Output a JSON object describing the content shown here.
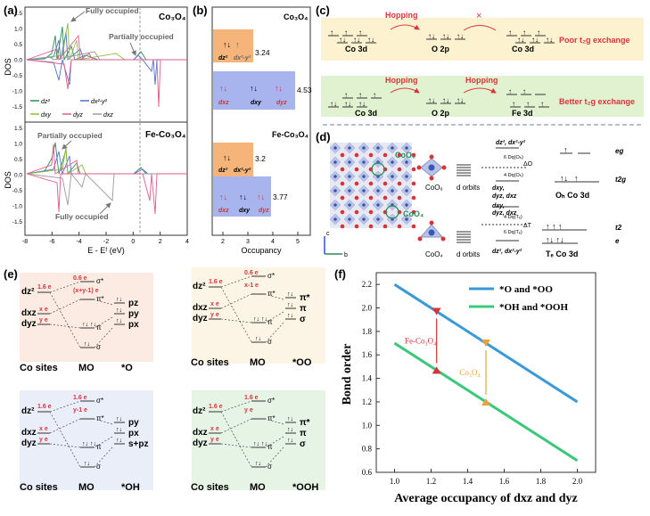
{
  "panel_letters": {
    "a": "(a)",
    "b": "(b)",
    "c": "(c)",
    "d": "(d)",
    "e": "(e)",
    "f": "(f)"
  },
  "panel_a": {
    "top_title": "Co₃O₄",
    "bottom_title": "Fe-Co₃O₄",
    "ylabel": "DOS",
    "xlabel": "E - Eᶠ (eV)",
    "xticks": [
      "-8",
      "-6",
      "-4",
      "-2",
      "0",
      "2",
      "4"
    ],
    "yticks": [
      "1.5",
      "1.0",
      "0.5",
      "0.0",
      "-0.5",
      "-1.0",
      "-1.5"
    ],
    "ann_fully_top": "Fully occupied",
    "ann_partially_top": "Partially occupied",
    "ann_partially_bottom": "Partially occupied",
    "ann_fully_bottom": "Fully occupied",
    "legend": [
      "dz²",
      "dx²-y²",
      "dxy",
      "dyz",
      "dxz"
    ],
    "colors": {
      "dz2": "#2e8b57",
      "dx2y2": "#4f6fd1",
      "dxy": "#8fbf3f",
      "dyz": "#e05a8a",
      "dxz": "#9a9a9a"
    }
  },
  "panel_b": {
    "top_title": "Co₃O₄",
    "bottom_title": "Fe-Co₃O₄",
    "xlabel": "Occupancy",
    "xticks": [
      "2",
      "3",
      "4",
      "5"
    ],
    "val1": "3.24",
    "val2": "4.53",
    "val3": "3.2",
    "val4": "3.77",
    "orb_labels": {
      "dz2": "dz²",
      "dx2y2": "dx²-y²",
      "dxz": "dxz",
      "dxy": "dxy",
      "dyz": "dyz"
    }
  },
  "panel_c": {
    "hopping": "Hopping",
    "co3d": "Co 3d",
    "o2p": "O 2p",
    "fe3d": "Fe 3d",
    "poor": "Poor t₂g exchange",
    "better": "Better t₂g exchange",
    "cross": "×"
  },
  "panel_d": {
    "coo6": "CoO₆",
    "coo4": "CoO₄",
    "dorbits": "d orbits",
    "eg": "eg",
    "t2g": "t2g",
    "t2": "t2",
    "e": "e",
    "oh": "Oₕ Co 3d",
    "td": "Tₑ Co 3d",
    "d_top": "dz², dx²-y²",
    "d_mid1": "dxy,",
    "d_mid2": "dyz, dxz",
    "d_tdtop1": "dxy,",
    "d_tdtop2": "dyz, dxz",
    "d_bottom": "dz², dx²-y²",
    "oh_up": "6 Dq(Oₕ)",
    "oh_down": "4 Dq(Oₕ)",
    "td_up": "4 Dq(Tₑ)",
    "td_down": "6 Dq(Tₑ)",
    "delta_o": "ΔO",
    "delta_t": "ΔT",
    "axis_c": "c",
    "axis_b": "b"
  },
  "panel_e": {
    "co_sites": "Co sites",
    "mo": "MO",
    "O": "*O",
    "OO": "*OO",
    "OH": "*OH",
    "OOH": "*OOH",
    "dz2": "dz²",
    "dxz": "dxz",
    "dyz": "dyz",
    "e16": "1.6 e",
    "e06": "0.6 e",
    "xe": "x e",
    "ye": "y e",
    "xy1": "(x+y-1) e",
    "x1": "x-1 e",
    "y1": "y-1 e",
    "pz": "pz",
    "py": "py",
    "px": "px",
    "spz": "s+pz",
    "sigma": "σ",
    "pi": "π",
    "sigma_s": "σ*",
    "pi_s": "π*"
  },
  "chart_data": {
    "type": "line",
    "title": "",
    "xlabel": "Average occupancy of dxz and dyz",
    "ylabel": "Bond order",
    "xlim": [
      0.9,
      2.1
    ],
    "ylim": [
      0.6,
      2.3
    ],
    "xticks": [
      1.0,
      1.2,
      1.4,
      1.6,
      1.8,
      2.0
    ],
    "yticks": [
      0.6,
      0.8,
      1.0,
      1.2,
      1.4,
      1.6,
      1.8,
      2.0,
      2.2
    ],
    "legend_position": "top-right",
    "series": [
      {
        "name": "*O and *OO",
        "color": "#3a9ad9",
        "x": [
          1.0,
          2.0
        ],
        "y": [
          2.2,
          1.2
        ]
      },
      {
        "name": "*OH and *OOH",
        "color": "#3cc87a",
        "x": [
          1.0,
          2.0
        ],
        "y": [
          1.7,
          0.7
        ]
      }
    ],
    "markers": [
      {
        "label": "Fe-Co₃O₄",
        "color": "#d9323a",
        "x": 1.23,
        "y_top": 1.97,
        "y_bottom": 1.47
      },
      {
        "label": "Co₃O₄",
        "color": "#e8a23a",
        "x": 1.5,
        "y_top": 1.7,
        "y_bottom": 1.2
      }
    ]
  }
}
